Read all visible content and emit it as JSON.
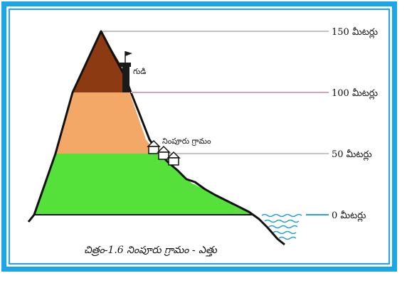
{
  "diagram": {
    "levels": [
      {
        "value": 150,
        "label": "150 మీటర్లు"
      },
      {
        "value": 100,
        "label": "100 మీటర్లు"
      },
      {
        "value": 50,
        "label": "50 మీటర్లు"
      },
      {
        "value": 0,
        "label": "0 మీటర్లు"
      }
    ],
    "hut_label": "గుడి",
    "village_label": "నింపూరు గ్రామం",
    "caption": "చిత్రం-1.6 నింపూరు గ్రామం - ఎత్తు",
    "colors": {
      "border": "#1aa6e8",
      "band_top": "#8b3a12",
      "band_middle": "#f4a868",
      "band_bottom": "#55e03a",
      "water": "#2aa1d8"
    }
  }
}
